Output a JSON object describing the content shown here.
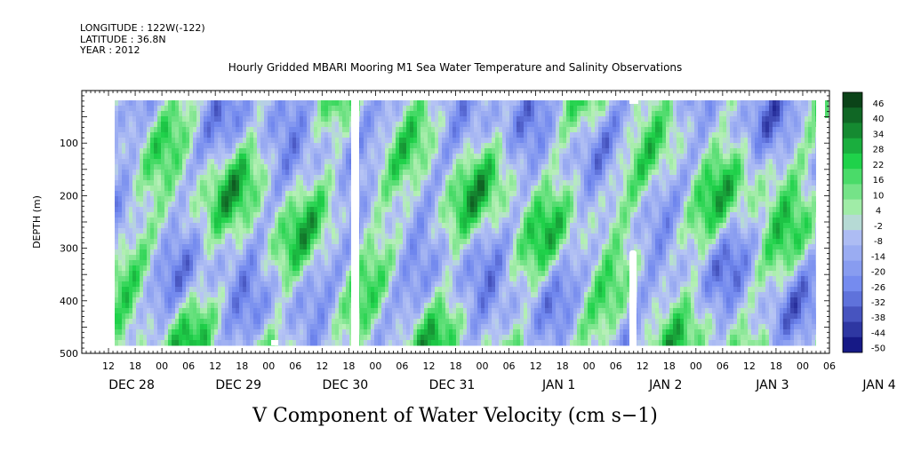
{
  "header": {
    "longitude": "LONGITUDE : 122W(-122)",
    "latitude": "LATITUDE : 36.8N",
    "year": "YEAR : 2012"
  },
  "chart_data": {
    "type": "heatmap",
    "title": "Hourly Gridded MBARI Mooring M1 Sea Water Temperature and Salinity Observations",
    "xlabel": "V Component of Water Velocity (cm s−1)",
    "ylabel": "DEPTH (m)",
    "x_range_hours": [
      0,
      168
    ],
    "x_tick_labels": [
      "12",
      "18",
      "00",
      "06",
      "12",
      "18",
      "00",
      "06",
      "12",
      "18",
      "00",
      "06",
      "12",
      "18",
      "00",
      "06",
      "12",
      "18",
      "00",
      "06",
      "12",
      "18",
      "00",
      "06",
      "12",
      "18",
      "00",
      "06"
    ],
    "day_labels": [
      "DEC 28",
      "DEC 29",
      "DEC 30",
      "DEC 31",
      "JAN  1",
      "JAN  2",
      "JAN  3",
      "JAN  4"
    ],
    "ylim": [
      500,
      0
    ],
    "y_ticks": [
      "100",
      "200",
      "300",
      "400",
      "500"
    ],
    "colorbar": {
      "range": [
        -50,
        50
      ],
      "labels": [
        "46",
        "40",
        "34",
        "28",
        "22",
        "16",
        "10",
        "4",
        "-2",
        "-8",
        "-14",
        "-20",
        "-26",
        "-32",
        "-38",
        "-44",
        "-50"
      ]
    },
    "colors": {
      "negative_extreme": "#0a0a78",
      "negative_mid": "#6f86ee",
      "near_zero_low": "#b6c4f4",
      "near_zero_high": "#b6f0b6",
      "positive_mid": "#1fd24a",
      "positive_extreme": "#0a3d16"
    },
    "data_gaps": [
      "DEC 31 00",
      "JAN  2 14"
    ]
  }
}
